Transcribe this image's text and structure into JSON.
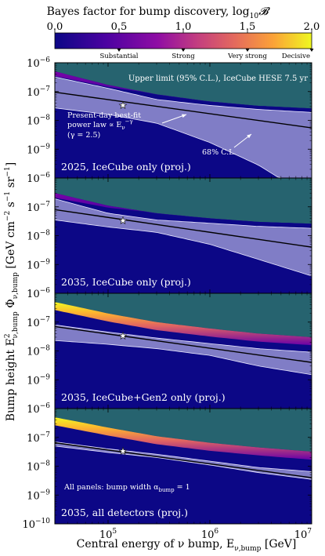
{
  "colorbar": {
    "title": "Bayes factor for bump discovery, log",
    "title_sub": "10",
    "title_sym": "𝓑",
    "ticks": [
      "0.0",
      "0.5",
      "1.0",
      "1.5",
      "2.0"
    ],
    "tick_values": [
      0.0,
      0.5,
      1.0,
      1.5,
      2.0
    ],
    "range": [
      0.0,
      2.0
    ],
    "categories": [
      "Substantial",
      "Strong",
      "Very strong",
      "Decisive"
    ],
    "category_values": [
      0.5,
      1.0,
      1.5,
      2.0
    ],
    "colormap": [
      "#0c0786",
      "#6a00a7",
      "#b02a8f",
      "#e06461",
      "#fca635",
      "#eff821"
    ]
  },
  "axes": {
    "xlabel": "Central energy of ν bump, E",
    "xlabel_sub": "ν,bump",
    "xlabel_unit": " [GeV]",
    "ylabel_lead": "Bump height E",
    "ylabel_sup": "2",
    "ylabel_sub": "ν,bump",
    "ylabel_phi": " Φ",
    "ylabel_phisub": "ν,bump",
    "ylabel_unit": " [GeV cm",
    "ylabel_unit2": "−2",
    "ylabel_unit3": " s",
    "ylabel_unit4": "−1",
    "ylabel_unit5": " sr",
    "ylabel_unit6": "−1",
    "ylabel_unit7": "]",
    "x_ticks": [
      {
        "base": "10",
        "exp": "5"
      },
      {
        "base": "10",
        "exp": "6"
      },
      {
        "base": "10",
        "exp": "7"
      }
    ],
    "xlim": [
      30000,
      10000000
    ],
    "ylim": [
      1e-10,
      1e-06
    ],
    "y_ticks": [
      {
        "base": "10",
        "exp": "−6"
      },
      {
        "base": "10",
        "exp": "−7"
      },
      {
        "base": "10",
        "exp": "−8"
      },
      {
        "base": "10",
        "exp": "−9"
      },
      {
        "base": "10",
        "exp": "−10"
      }
    ],
    "x_scale": "log",
    "y_scale": "log"
  },
  "colors": {
    "excluded_region": "#26636f",
    "background": "#0c0786",
    "ci_band": "#8b88cc",
    "best_fit": "#000000",
    "annotation": "#ffffff"
  },
  "chart_data": [
    {
      "type": "heatmap",
      "panel_label": "2025, IceCube only (proj.)",
      "annotations": {
        "upper_limit": "Upper limit (95% C.L.), IceCube HESE 7.5 yr",
        "best_fit_l1": "Present-day best-fit",
        "best_fit_l2": "power law ∝ E",
        "best_fit_l2_sub": "ν",
        "best_fit_l2_sup": "−γ",
        "best_fit_l3": "(γ = 2.5)",
        "ci": "68% C.L."
      },
      "best_fit_line": {
        "x": [
          30000,
          10000000
        ],
        "y": [
          9.5e-08,
          5.5e-09
        ]
      },
      "ci_band": {
        "x": [
          30000,
          100000,
          300000,
          1000000,
          3000000,
          10000000
        ],
        "upper": [
          3.2e-07,
          1.3e-07,
          5.3e-08,
          3.3e-08,
          2.4e-08,
          1.9e-08
        ],
        "lower": [
          2.7e-08,
          1.6e-08,
          8e-09,
          1.7e-09,
          2.8e-10,
          2e-11
        ]
      },
      "upper_limit": {
        "x": [
          30000,
          100000,
          300000,
          1000000,
          3000000,
          10000000
        ],
        "y": [
          5e-07,
          1.7e-07,
          8e-08,
          4.5e-08,
          3.2e-08,
          2.6e-08
        ]
      },
      "bayes_band_peak": 1.0,
      "best_fit_star": {
        "x": 140000,
        "y": 3.3e-08
      }
    },
    {
      "type": "heatmap",
      "panel_label": "2035, IceCube only (proj.)",
      "best_fit_line": {
        "x": [
          30000,
          10000000
        ],
        "y": [
          8e-08,
          4e-09
        ]
      },
      "ci_band": {
        "x": [
          30000,
          100000,
          300000,
          1000000,
          3000000,
          10000000
        ],
        "upper": [
          1.9e-07,
          6e-08,
          3.5e-08,
          2.7e-08,
          2.1e-08,
          1.8e-08
        ],
        "lower": [
          3.5e-08,
          2e-08,
          1.3e-08,
          5e-09,
          1.5e-09,
          4e-10
        ]
      },
      "upper_limit": {
        "x": [
          30000,
          100000,
          300000,
          1000000,
          3000000,
          10000000
        ],
        "y": [
          3e-07,
          1.1e-07,
          6e-08,
          4e-08,
          3e-08,
          2.6e-08
        ]
      },
      "bayes_band_peak": 1.0,
      "best_fit_star": {
        "x": 140000,
        "y": 3.3e-08
      }
    },
    {
      "type": "heatmap",
      "panel_label": "2035, IceCube+Gen2 only (proj.)",
      "best_fit_line": {
        "x": [
          30000,
          10000000
        ],
        "y": [
          7e-08,
          4e-09
        ]
      },
      "ci_band": {
        "x": [
          30000,
          100000,
          300000,
          1000000,
          3000000,
          10000000
        ],
        "upper": [
          8e-08,
          4.5e-08,
          2.8e-08,
          1.8e-08,
          1.2e-08,
          9e-09
        ],
        "lower": [
          2.3e-08,
          1.7e-08,
          1.2e-08,
          7e-09,
          3e-09,
          1.5e-09
        ]
      },
      "upper_limit": {
        "x": [
          30000,
          100000,
          300000,
          1000000,
          3000000,
          10000000
        ],
        "y": [
          5e-07,
          2e-07,
          1e-07,
          6e-08,
          4e-08,
          3e-08
        ]
      },
      "bayes_band_peak": 2.0,
      "best_fit_star": {
        "x": 140000,
        "y": 3.3e-08
      }
    },
    {
      "type": "heatmap",
      "panel_label": "2035, all detectors (proj.)",
      "annotations": {
        "bump_width": "All panels: bump width α",
        "bump_width_sub": "bump",
        "bump_width_tail": " = 1"
      },
      "best_fit_line": {
        "x": [
          30000,
          10000000
        ],
        "y": [
          6.5e-08,
          4e-09
        ]
      },
      "ci_band": {
        "x": [
          30000,
          100000,
          300000,
          1000000,
          3000000,
          10000000
        ],
        "upper": [
          7e-08,
          4e-08,
          2.6e-08,
          1.5e-08,
          9e-09,
          6.5e-09
        ],
        "lower": [
          5e-08,
          3e-08,
          2e-08,
          1.1e-08,
          6e-09,
          3.5e-09
        ]
      },
      "upper_limit": {
        "x": [
          30000,
          100000,
          300000,
          1000000,
          3000000,
          10000000
        ],
        "y": [
          5e-07,
          2.2e-07,
          1.1e-07,
          6.5e-08,
          4.5e-08,
          3.2e-08
        ]
      },
      "bayes_band_peak": 2.0,
      "best_fit_star": {
        "x": 140000,
        "y": 3.3e-08
      }
    }
  ]
}
